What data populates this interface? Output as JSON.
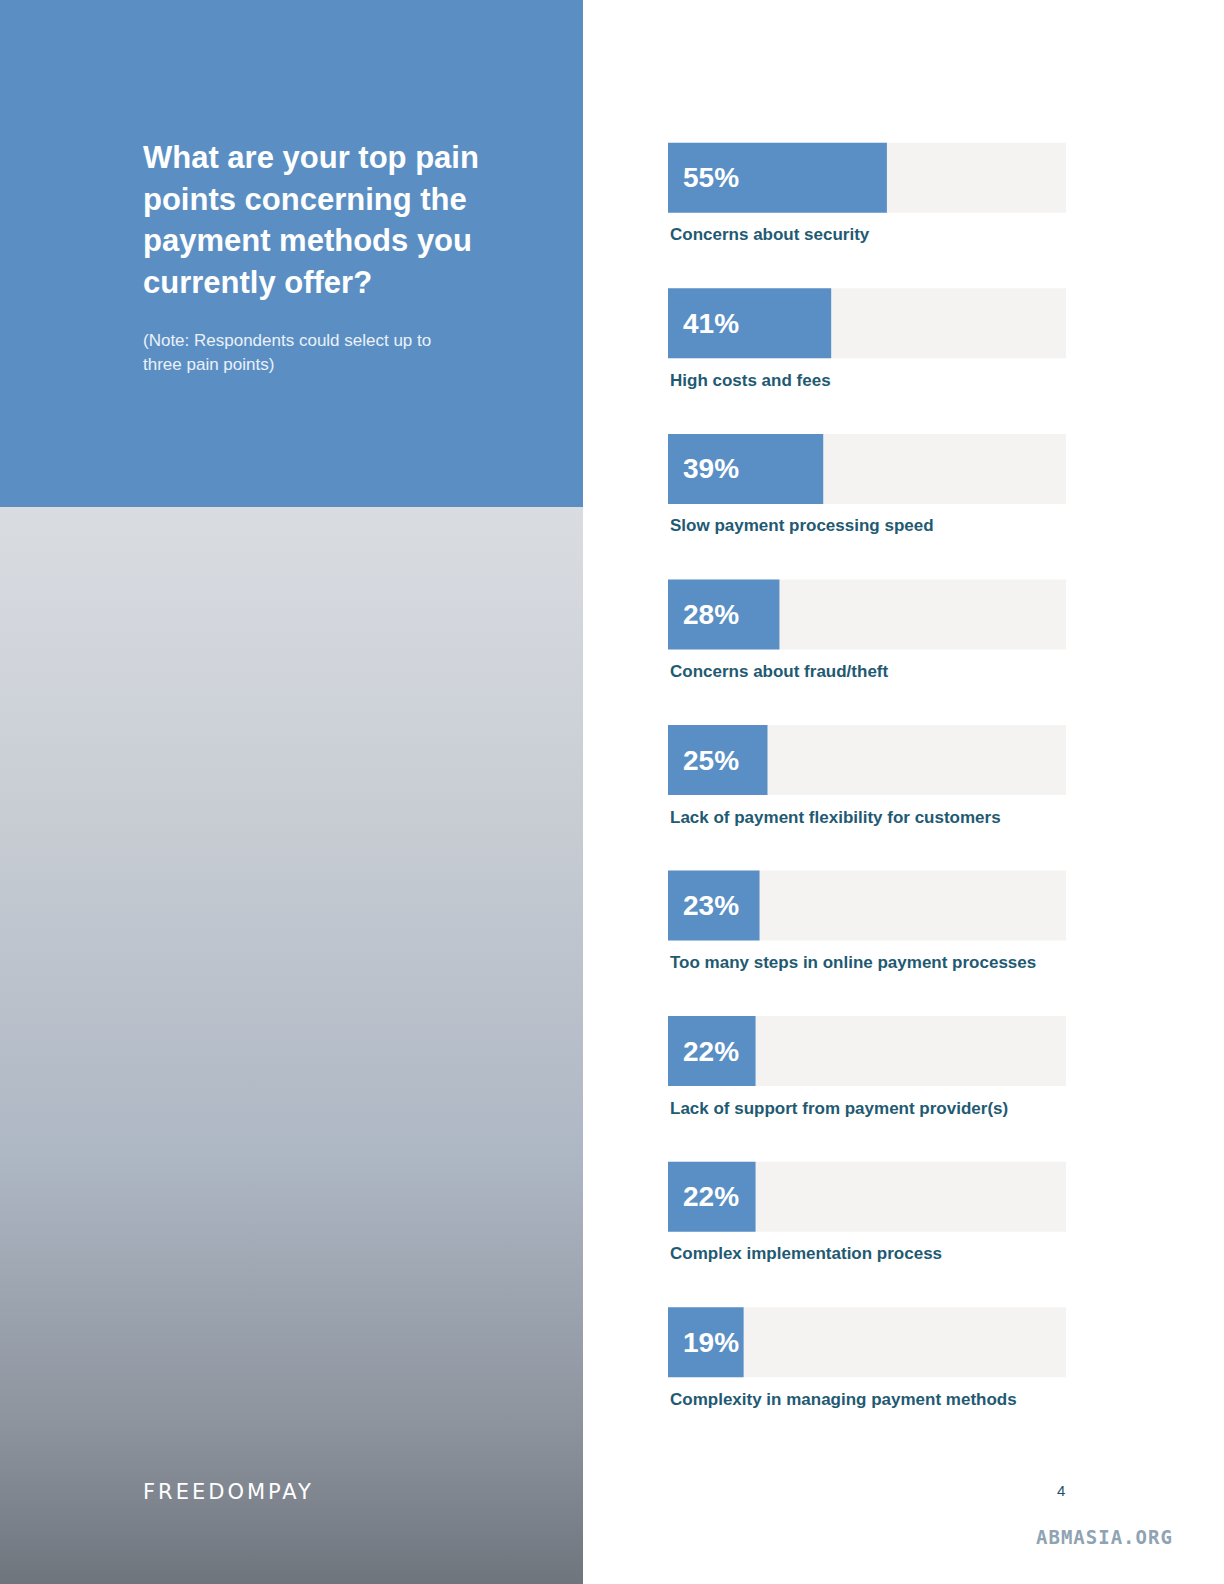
{
  "chart_data": {
    "type": "bar",
    "orientation": "horizontal",
    "title": "What are your top pain points concerning the payment methods you currently offer?",
    "subtitle": "(Note: Respondents could select up to three pain points)",
    "categories": [
      "Concerns about security",
      "High costs and fees",
      "Slow payment processing speed",
      "Concerns about fraud/theft",
      "Lack of payment flexibility for customers",
      "Too many steps in online payment processes",
      "Lack of support from payment provider(s)",
      "Complex implementation process",
      "Complexity in managing payment methods"
    ],
    "values": [
      55,
      41,
      39,
      28,
      25,
      23,
      22,
      22,
      19
    ],
    "value_labels": [
      "55%",
      "41%",
      "39%",
      "28%",
      "25%",
      "23%",
      "22%",
      "22%",
      "19%"
    ],
    "color": "#5a8fc5",
    "xlim": [
      0,
      100
    ],
    "data_labels": true,
    "tick_labels": false,
    "grid": false
  },
  "page": {
    "logo": "FREEDOMPAY",
    "page_number": "4",
    "watermark": "ABMASIA.ORG"
  }
}
